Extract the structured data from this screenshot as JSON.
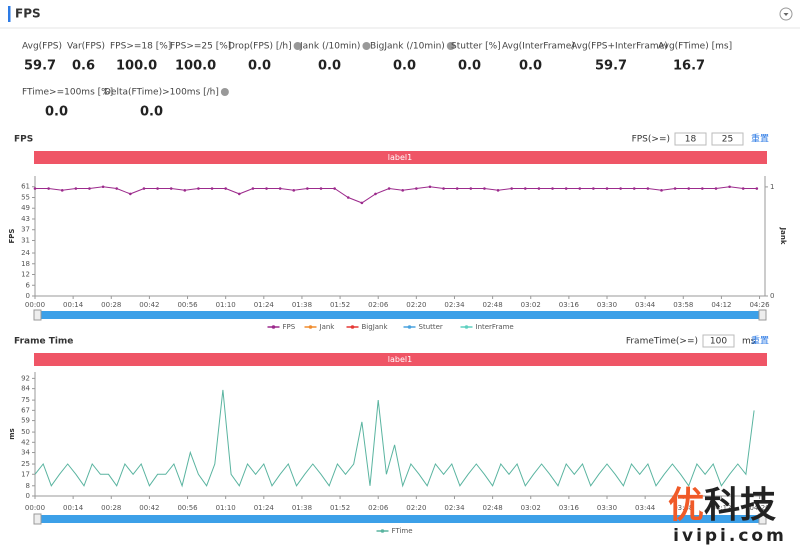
{
  "title": "FPS",
  "stats": [
    {
      "label": "Avg(FPS)",
      "value": "59.7"
    },
    {
      "label": "Var(FPS)",
      "value": "0.6"
    },
    {
      "label": "FPS>=18 [%]",
      "value": "100.0"
    },
    {
      "label": "FPS>=25 [%]",
      "value": "100.0"
    },
    {
      "label": "Drop(FPS) [/h]",
      "value": "0.0"
    },
    {
      "label": "Jank (/10min)",
      "value": "0.0"
    },
    {
      "label": "BigJank (/10min)",
      "value": "0.0"
    },
    {
      "label": "Stutter [%]",
      "value": "0.0"
    },
    {
      "label": "Avg(InterFrame)",
      "value": "0.0"
    },
    {
      "label": "Avg(FPS+InterFrame)",
      "value": "59.7"
    },
    {
      "label": "Avg(FTime) [ms]",
      "value": "16.7"
    },
    {
      "label": "FTime>=100ms [%]",
      "value": "0.0"
    },
    {
      "label": "Delta(FTime)>100ms [/h]",
      "value": "0.0"
    }
  ],
  "chart_data": [
    {
      "type": "line",
      "title": "FPS",
      "threshold_label": "FPS(>=)",
      "thresholds": [
        18,
        25
      ],
      "reset": "重置",
      "band_label": "label1",
      "y_label": "FPS",
      "y2_label": "Jank",
      "grid": false,
      "xlim": [
        0,
        268
      ],
      "ylim": [
        0,
        67
      ],
      "y2lim": [
        0,
        1.1
      ],
      "y2ticks": [
        0,
        1
      ],
      "yticks": [
        0,
        6,
        12,
        18,
        24,
        31,
        37,
        43,
        49,
        55,
        61
      ],
      "xticks": [
        {
          "value": 0,
          "label": "00:00"
        },
        {
          "value": 14,
          "label": "00:14"
        },
        {
          "value": 28,
          "label": "00:28"
        },
        {
          "value": 42,
          "label": "00:42"
        },
        {
          "value": 56,
          "label": "00:56"
        },
        {
          "value": 70,
          "label": "01:10"
        },
        {
          "value": 84,
          "label": "01:24"
        },
        {
          "value": 98,
          "label": "01:38"
        },
        {
          "value": 112,
          "label": "01:52"
        },
        {
          "value": 126,
          "label": "02:06"
        },
        {
          "value": 140,
          "label": "02:20"
        },
        {
          "value": 154,
          "label": "02:34"
        },
        {
          "value": 168,
          "label": "02:48"
        },
        {
          "value": 182,
          "label": "03:02"
        },
        {
          "value": 196,
          "label": "03:16"
        },
        {
          "value": 210,
          "label": "03:30"
        },
        {
          "value": 224,
          "label": "03:44"
        },
        {
          "value": 238,
          "label": "03:58"
        },
        {
          "value": 252,
          "label": "04:12"
        },
        {
          "value": 266,
          "label": "04:26"
        }
      ],
      "x": [
        0,
        5,
        10,
        15,
        20,
        25,
        30,
        35,
        40,
        45,
        50,
        55,
        60,
        65,
        70,
        75,
        80,
        85,
        90,
        95,
        100,
        105,
        110,
        115,
        120,
        125,
        130,
        135,
        140,
        145,
        150,
        155,
        160,
        165,
        170,
        175,
        180,
        185,
        190,
        195,
        200,
        205,
        210,
        215,
        220,
        225,
        230,
        235,
        240,
        245,
        250,
        255,
        260,
        265
      ],
      "series": [
        {
          "name": "FPS",
          "color": "#9c2a8c",
          "values": [
            60,
            60,
            59,
            60,
            60,
            61,
            60,
            57,
            60,
            60,
            60,
            59,
            60,
            60,
            60,
            57,
            60,
            60,
            60,
            59,
            60,
            60,
            60,
            55,
            52,
            57,
            60,
            59,
            60,
            61,
            60,
            60,
            60,
            60,
            59,
            60,
            60,
            60,
            60,
            60,
            60,
            60,
            60,
            60,
            60,
            60,
            59,
            60,
            60,
            60,
            60,
            61,
            60,
            60
          ]
        },
        {
          "name": "Jank",
          "color": "#f08c2e"
        },
        {
          "name": "BigJank",
          "color": "#e53935"
        },
        {
          "name": "Stutter",
          "color": "#4aa3df"
        },
        {
          "name": "InterFrame",
          "color": "#5fd0c0"
        }
      ]
    },
    {
      "type": "line",
      "title": "Frame Time",
      "threshold_label": "FrameTime(>=)",
      "thresholds": [
        100
      ],
      "threshold_unit": "ms",
      "reset": "重置",
      "band_label": "label1",
      "y_label": "ms",
      "grid": false,
      "xlim": [
        0,
        268
      ],
      "ylim": [
        0,
        97
      ],
      "yticks": [
        0,
        8,
        17,
        25,
        34,
        42,
        50,
        59,
        67,
        75,
        84,
        92
      ],
      "xticks": [
        {
          "value": 0,
          "label": "00:00"
        },
        {
          "value": 14,
          "label": "00:14"
        },
        {
          "value": 28,
          "label": "00:28"
        },
        {
          "value": 42,
          "label": "00:42"
        },
        {
          "value": 56,
          "label": "00:56"
        },
        {
          "value": 70,
          "label": "01:10"
        },
        {
          "value": 84,
          "label": "01:24"
        },
        {
          "value": 98,
          "label": "01:38"
        },
        {
          "value": 112,
          "label": "01:52"
        },
        {
          "value": 126,
          "label": "02:06"
        },
        {
          "value": 140,
          "label": "02:20"
        },
        {
          "value": 154,
          "label": "02:34"
        },
        {
          "value": 168,
          "label": "02:48"
        },
        {
          "value": 182,
          "label": "03:02"
        },
        {
          "value": 196,
          "label": "03:16"
        },
        {
          "value": 210,
          "label": "03:30"
        },
        {
          "value": 224,
          "label": "03:44"
        },
        {
          "value": 238,
          "label": "03:58"
        },
        {
          "value": 252,
          "label": "04:12"
        },
        {
          "value": 266,
          "label": "04:26"
        }
      ],
      "x": [
        0,
        3,
        6,
        9,
        12,
        15,
        18,
        21,
        24,
        27,
        30,
        33,
        36,
        39,
        42,
        45,
        48,
        51,
        54,
        57,
        60,
        63,
        66,
        69,
        72,
        75,
        78,
        81,
        84,
        87,
        90,
        93,
        96,
        99,
        102,
        105,
        108,
        111,
        114,
        117,
        120,
        123,
        126,
        129,
        132,
        135,
        138,
        141,
        144,
        147,
        150,
        153,
        156,
        159,
        162,
        165,
        168,
        171,
        174,
        177,
        180,
        183,
        186,
        189,
        192,
        195,
        198,
        201,
        204,
        207,
        210,
        213,
        216,
        219,
        222,
        225,
        228,
        231,
        234,
        237,
        240,
        243,
        246,
        249,
        252,
        255,
        258,
        261,
        264
      ],
      "series": [
        {
          "name": "FTime",
          "color": "#5ab4a0",
          "values": [
            17,
            25,
            8,
            17,
            25,
            17,
            8,
            25,
            17,
            17,
            8,
            25,
            17,
            25,
            8,
            17,
            17,
            25,
            8,
            34,
            17,
            8,
            25,
            83,
            17,
            8,
            25,
            17,
            25,
            8,
            17,
            25,
            8,
            17,
            25,
            17,
            8,
            25,
            17,
            25,
            58,
            8,
            75,
            17,
            40,
            8,
            25,
            17,
            8,
            25,
            17,
            25,
            8,
            17,
            25,
            17,
            8,
            25,
            17,
            25,
            8,
            17,
            25,
            17,
            8,
            25,
            17,
            25,
            8,
            17,
            25,
            17,
            8,
            25,
            17,
            25,
            8,
            17,
            25,
            17,
            8,
            25,
            17,
            25,
            8,
            17,
            25,
            17,
            67
          ]
        }
      ]
    }
  ],
  "watermark": {
    "mark": "优",
    "text": "科技",
    "site": "ivipi.com"
  }
}
